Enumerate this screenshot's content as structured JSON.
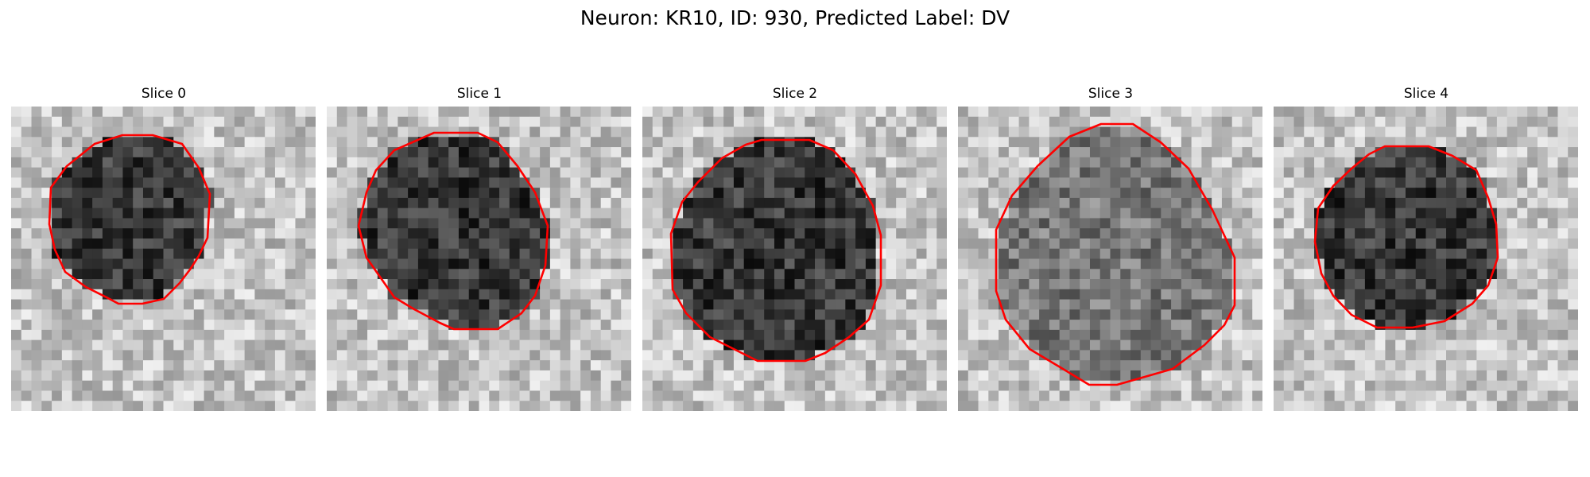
{
  "figure": {
    "title": "Neuron: KR10, ID: 930, Predicted Label: DV"
  },
  "panels": [
    {
      "title": "Slice 0",
      "contour_color": "#ff0000",
      "background": "light",
      "cell_tone": "dark"
    },
    {
      "title": "Slice 1",
      "contour_color": "#ff0000",
      "background": "light",
      "cell_tone": "dark"
    },
    {
      "title": "Slice 2",
      "contour_color": "#ff0000",
      "background": "light",
      "cell_tone": "dark"
    },
    {
      "title": "Slice 3",
      "contour_color": "#ff0000",
      "background": "light",
      "cell_tone": "medium"
    },
    {
      "title": "Slice 4",
      "contour_color": "#ff0000",
      "background": "light",
      "cell_tone": "dark"
    }
  ]
}
